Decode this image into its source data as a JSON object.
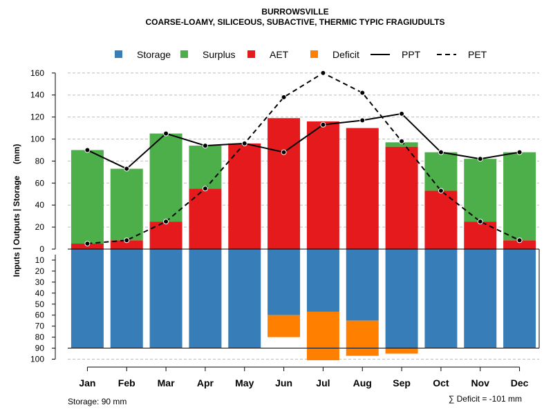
{
  "chart_data": {
    "type": "bar",
    "title": "BURROWSVILLE",
    "subtitle": "COARSE-LOAMY, SILICEOUS, SUBACTIVE, THERMIC TYPIC FRAGIUDULTS",
    "ylabel": "Inputs | Outputs | Storage     (mm)",
    "categories": [
      "Jan",
      "Feb",
      "Mar",
      "Apr",
      "May",
      "Jun",
      "Jul",
      "Aug",
      "Sep",
      "Oct",
      "Nov",
      "Dec"
    ],
    "upper_ylim": [
      0,
      160
    ],
    "upper_ticks": [
      0,
      20,
      40,
      60,
      80,
      100,
      120,
      140,
      160
    ],
    "lower_ylim": [
      0,
      100
    ],
    "lower_ticks": [
      10,
      20,
      30,
      40,
      50,
      60,
      70,
      80,
      90,
      100
    ],
    "grid": true,
    "legend_position": "top",
    "storage_capacity": 90,
    "series": [
      {
        "name": "AET",
        "color": "#e41a1c",
        "values": [
          5,
          8,
          25,
          55,
          96,
          119,
          116,
          110,
          93,
          53,
          25,
          8
        ]
      },
      {
        "name": "Surplus",
        "color": "#4daf4a",
        "values": [
          85,
          65,
          80,
          39,
          0,
          0,
          0,
          0,
          4,
          35,
          57,
          80
        ]
      },
      {
        "name": "Storage",
        "color": "#377eb8",
        "values": [
          90,
          90,
          90,
          90,
          90,
          60,
          57,
          65,
          90,
          90,
          90,
          90
        ]
      },
      {
        "name": "Deficit",
        "color": "#ff7f00",
        "values": [
          0,
          0,
          0,
          0,
          0,
          20,
          44,
          32,
          5,
          0,
          0,
          0
        ]
      },
      {
        "name": "PPT",
        "color": "#000000",
        "line": "solid",
        "values": [
          90,
          73,
          105,
          94,
          96,
          88,
          113,
          117,
          123,
          88,
          82,
          88
        ]
      },
      {
        "name": "PET",
        "color": "#000000",
        "line": "dashed",
        "values": [
          5,
          8,
          25,
          55,
          96,
          138,
          160,
          142,
          98,
          53,
          25,
          8
        ]
      }
    ],
    "legend": [
      "Storage",
      "Surplus",
      "AET",
      "Deficit",
      "PPT",
      "PET"
    ],
    "storage_note": "Storage: 90 mm",
    "deficit_note": "∑ Deficit = -101 mm"
  }
}
